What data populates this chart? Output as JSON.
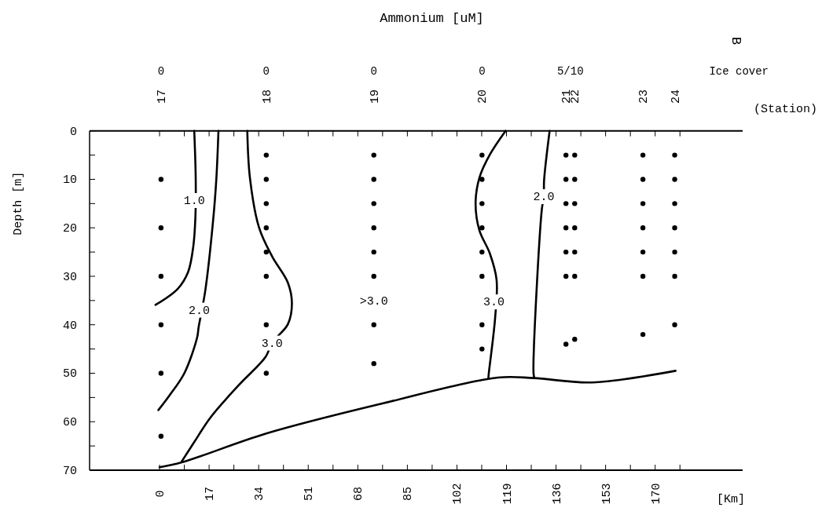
{
  "chart_data": {
    "type": "line",
    "title": "Ammonium [uM]",
    "xlabel": "[Km]",
    "ylabel": "Depth [m]",
    "xlim": [
      -24,
      200
    ],
    "ylim": [
      70,
      0
    ],
    "xticks": [
      0,
      {
        "value": 8.5,
        "label": null
      },
      17,
      {
        "value": 25.5,
        "label": null
      },
      34,
      {
        "value": 42.5,
        "label": null
      },
      51,
      {
        "value": 59.5,
        "label": null
      },
      68,
      {
        "value": 76.5,
        "label": null
      },
      85,
      {
        "value": 93.5,
        "label": null
      },
      102,
      {
        "value": 110.5,
        "label": null
      },
      119,
      {
        "value": 127.5,
        "label": null
      },
      136,
      {
        "value": 144.5,
        "label": null
      },
      153,
      {
        "value": 161.5,
        "label": null
      },
      170,
      {
        "value": 178.5,
        "label": null
      }
    ],
    "yticks": [
      0,
      {
        "value": 5,
        "label": null
      },
      10,
      {
        "value": 15,
        "label": null
      },
      20,
      {
        "value": 25,
        "label": null
      },
      30,
      {
        "value": 35,
        "label": null
      },
      40,
      {
        "value": 45,
        "label": null
      },
      50,
      {
        "value": 55,
        "label": null
      },
      60,
      {
        "value": 65,
        "label": null
      },
      70
    ],
    "series": [
      {
        "color": "#000000",
        "x": [
          11.9,
          12.4,
          12.3,
          11.6,
          9.8,
          6.2,
          -1.4
        ],
        "values": [
          0,
          9.7,
          17.7,
          23.7,
          29.1,
          32.6,
          35.9
        ]
      },
      {
        "color": "#000000",
        "x": [
          20.2,
          19.5,
          18.4,
          15.7,
          13.4,
          12.9,
          8.5,
          3.5,
          -0.4
        ],
        "values": [
          0,
          9.7,
          18.3,
          32.9,
          40.5,
          42.6,
          50,
          54.5,
          57.6
        ]
      },
      {
        "color": "#000000",
        "x": [
          30.1,
          31,
          34.1,
          38.6,
          44,
          45.4,
          44,
          38.6,
          36.4,
          27.1,
          17.5,
          12,
          7.6
        ],
        "values": [
          0,
          9.7,
          19.9,
          25.9,
          31.3,
          35.6,
          39.9,
          43.7,
          46.6,
          52.5,
          59.1,
          64.1,
          68.2
        ]
      },
      {
        "color": "#000000",
        "x": [
          118.7,
          113.3,
          109.7,
          108.4,
          109.7,
          113.3,
          115.6,
          115.1,
          112.9,
          112.8
        ],
        "values": [
          0,
          4.9,
          9.7,
          15.1,
          20.5,
          25.3,
          30.7,
          38.6,
          50.2,
          51
        ]
      },
      {
        "color": "#000000",
        "x": [
          133.8,
          131.9,
          131.8,
          131.1,
          128.3,
          128.6
        ],
        "values": [
          0,
          10.2,
          13.5,
          16.3,
          50.2,
          51
        ]
      },
      {
        "color": "#000000",
        "x": [
          0,
          7.6,
          36.8,
          76.7,
          116,
          128.3,
          148.3,
          177
        ],
        "values": [
          69.4,
          68.4,
          62.4,
          56.2,
          50.9,
          51,
          51.9,
          49.5
        ]
      },
      {
        "type": "scatter",
        "color": "#000000",
        "marker": "circle",
        "x": [
          0.5,
          0.5,
          0.5,
          0.5,
          0.5,
          0.5,
          36.6,
          36.6,
          36.6,
          36.6,
          36.6,
          36.6,
          36.6,
          36.6,
          73.5,
          73.5,
          73.5,
          73.5,
          73.5,
          73.5,
          73.5,
          73.5,
          110.6,
          110.6,
          110.6,
          110.6,
          110.6,
          110.6,
          110.6,
          110.6,
          139.4,
          139.4,
          139.4,
          139.4,
          139.4,
          139.4,
          139.4,
          142.4,
          142.4,
          142.4,
          142.4,
          142.4,
          142.4,
          142.4,
          165.8,
          165.8,
          165.8,
          165.8,
          165.8,
          165.8,
          165.8,
          176.7,
          176.7,
          176.7,
          176.7,
          176.7,
          176.7,
          176.7
        ],
        "values": [
          10,
          20,
          30,
          40,
          50,
          63,
          5,
          10,
          15,
          20,
          25,
          30,
          40,
          50,
          5,
          10,
          15,
          20,
          25,
          30,
          40,
          48,
          5,
          10,
          15,
          20,
          25,
          30,
          40,
          45,
          5,
          10,
          15,
          20,
          25,
          30,
          44,
          5,
          10,
          15,
          20,
          25,
          30,
          43,
          5,
          10,
          15,
          20,
          25,
          30,
          42,
          5,
          10,
          15,
          20,
          25,
          30,
          40
        ]
      }
    ],
    "annotations": [
      {
        "text": "1.0",
        "x": 11.9,
        "y": 14.3
      },
      {
        "text": "2.0",
        "x": 13.6,
        "y": 36.9
      },
      {
        "text": "3.0",
        "x": 38.6,
        "y": 43.7
      },
      {
        "text": "3.0",
        "x": 114.7,
        "y": 35.2
      },
      {
        "text": "2.0",
        "x": 131.8,
        "y": 13.5
      },
      "17",
      "18",
      "19",
      "20",
      "21",
      "22",
      "23",
      "24",
      "0",
      "0",
      "0",
      "0",
      "5/10",
      "Ice cover",
      "(Station)",
      "B",
      ">3.0"
    ]
  }
}
